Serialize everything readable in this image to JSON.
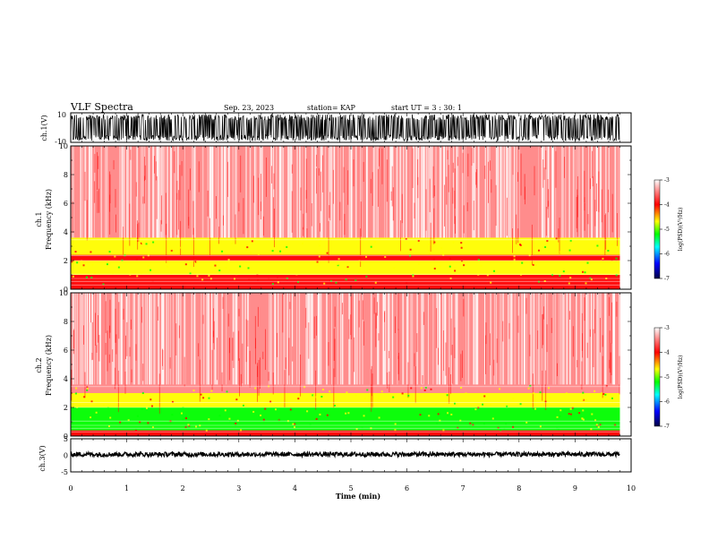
{
  "header": {
    "title": "VLF Spectra",
    "date": "Sep. 23, 2023",
    "station": "station= KAP",
    "start_time": "start  UT =   3 : 30: 1"
  },
  "colors": {
    "red": "#ff0000",
    "yellow": "#ffff00",
    "green": "#00ff00",
    "cyan": "#00ffff",
    "blue": "#0000ff",
    "navy": "#000066",
    "background": "#ffffff"
  },
  "chart_data": [
    {
      "type": "line",
      "id": "ch1-waveform",
      "ylabel": "ch.1(V)",
      "ylim": [
        -10,
        10
      ],
      "yticks": [
        "10",
        "-10"
      ],
      "xlim": [
        0,
        10
      ],
      "description_values": {
        "amplitude_range": [
          -9,
          9
        ]
      }
    },
    {
      "type": "heatmap",
      "id": "ch1-spectrogram",
      "ylabel_line1": "ch.1",
      "ylabel_line2": "Frequency  (kHz)",
      "ylim": [
        0,
        10
      ],
      "yticks": [
        "0",
        "2",
        "4",
        "6",
        "8",
        "10"
      ],
      "xlim": [
        0,
        10
      ],
      "data_end_min": 9.8,
      "bands": [
        {
          "from": 0.0,
          "to": 0.25,
          "level": "red"
        },
        {
          "from": 0.25,
          "to": 0.55,
          "level": "mixed-red"
        },
        {
          "from": 0.55,
          "to": 1.0,
          "level": "red"
        },
        {
          "from": 1.0,
          "to": 2.0,
          "level": "yellow"
        },
        {
          "from": 2.0,
          "to": 2.4,
          "level": "red"
        },
        {
          "from": 2.4,
          "to": 3.6,
          "level": "yellow"
        },
        {
          "from": 3.6,
          "to": 10.0,
          "level": "red-speckle"
        }
      ],
      "colorbar": {
        "label": "log(PSD)(V²/Hz)",
        "range": [
          -7,
          -3
        ],
        "ticks": [
          "-3",
          "-4",
          "-5",
          "-6",
          "-7"
        ]
      }
    },
    {
      "type": "heatmap",
      "id": "ch2-spectrogram",
      "ylabel_line1": "ch.2",
      "ylabel_line2": "Frequency  (kHz)",
      "ylim": [
        0,
        10
      ],
      "yticks": [
        "0",
        "2",
        "4",
        "6",
        "8",
        "10"
      ],
      "xlim": [
        0,
        10
      ],
      "data_end_min": 9.8,
      "bands": [
        {
          "from": 0.0,
          "to": 0.4,
          "level": "red"
        },
        {
          "from": 0.4,
          "to": 2.0,
          "level": "green"
        },
        {
          "from": 2.0,
          "to": 3.0,
          "level": "yellow"
        },
        {
          "from": 3.0,
          "to": 10.0,
          "level": "red-speckle"
        }
      ],
      "colorbar": {
        "label": "log(PSD)(V²/Hz)",
        "range": [
          -7,
          -3
        ],
        "ticks": [
          "-3",
          "-4",
          "-5",
          "-6",
          "-7"
        ]
      }
    },
    {
      "type": "line",
      "id": "ch3-waveform",
      "ylabel": "ch.3(V)",
      "ylim": [
        -5,
        5
      ],
      "yticks": [
        "5",
        "0",
        "-5"
      ],
      "xlim": [
        0,
        10
      ],
      "xticks": [
        "0",
        "1",
        "2",
        "3",
        "4",
        "5",
        "6",
        "7",
        "8",
        "9",
        "10"
      ],
      "xlabel": "Time  (min)",
      "description_values": {
        "center": 0.3,
        "amplitude_range": [
          -0.4,
          1.0
        ]
      }
    }
  ]
}
